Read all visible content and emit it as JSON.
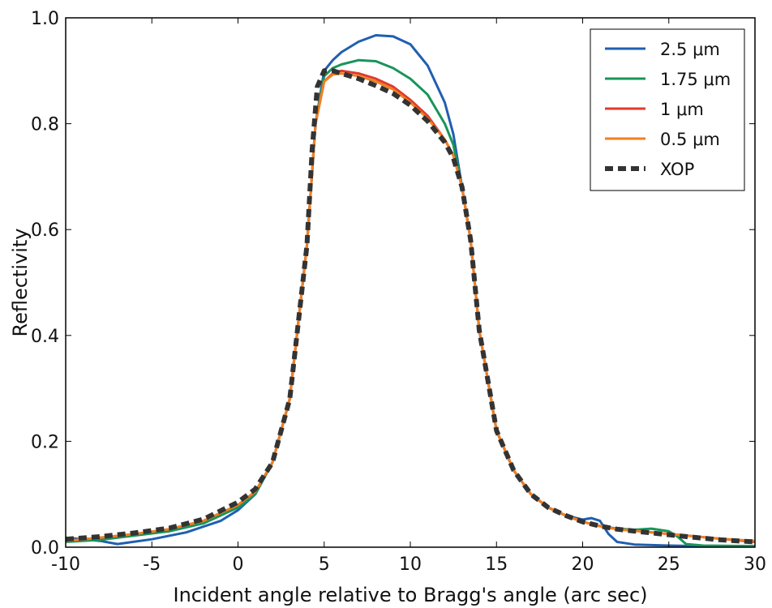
{
  "chart_data": {
    "type": "line",
    "xlabel": "Incident angle relative to Bragg's angle (arc sec)",
    "ylabel": "Reflectivity",
    "xlim": [
      -10,
      30
    ],
    "ylim": [
      0.0,
      1.0
    ],
    "xticks": [
      -10,
      -5,
      0,
      5,
      10,
      15,
      20,
      25,
      30
    ],
    "xtick_labels": [
      "-10",
      "-5",
      "0",
      "5",
      "10",
      "15",
      "20",
      "25",
      "30"
    ],
    "yticks": [
      0.0,
      0.2,
      0.4,
      0.6,
      0.8,
      1.0
    ],
    "ytick_labels": [
      "0.0",
      "0.2",
      "0.4",
      "0.6",
      "0.8",
      "1.0"
    ],
    "grid": false,
    "legend_position": "top-right",
    "series": [
      {
        "name": "2.5 μm",
        "color": "#1f5fb0",
        "style": "solid",
        "x": [
          -10,
          -8,
          -7,
          -5,
          -3,
          -1,
          0,
          1,
          2,
          3,
          4,
          4.5,
          5,
          5.5,
          6,
          7,
          8,
          9,
          10,
          11,
          12,
          12.5,
          13,
          13.5,
          14,
          15,
          16,
          17,
          18,
          19,
          20,
          20.5,
          21,
          21.5,
          22,
          23,
          25,
          27,
          30
        ],
        "y": [
          0.018,
          0.012,
          0.006,
          0.015,
          0.028,
          0.05,
          0.07,
          0.1,
          0.16,
          0.28,
          0.57,
          0.8,
          0.9,
          0.92,
          0.935,
          0.955,
          0.967,
          0.965,
          0.95,
          0.91,
          0.84,
          0.78,
          0.68,
          0.58,
          0.41,
          0.22,
          0.145,
          0.1,
          0.075,
          0.06,
          0.052,
          0.055,
          0.05,
          0.025,
          0.01,
          0.005,
          0.003,
          0.002,
          0.002
        ]
      },
      {
        "name": "1.75 μm",
        "color": "#18955a",
        "style": "solid",
        "x": [
          -10,
          -8,
          -6,
          -4,
          -2,
          0,
          1,
          2,
          3,
          4,
          4.5,
          5,
          5.5,
          6,
          7,
          8,
          9,
          10,
          11,
          12,
          12.5,
          13,
          13.5,
          14,
          15,
          16,
          17,
          18,
          19,
          20,
          21,
          22,
          23,
          24,
          25,
          25.5,
          26,
          27,
          30
        ],
        "y": [
          0.01,
          0.014,
          0.022,
          0.03,
          0.045,
          0.075,
          0.1,
          0.16,
          0.28,
          0.57,
          0.8,
          0.89,
          0.905,
          0.912,
          0.92,
          0.918,
          0.905,
          0.885,
          0.855,
          0.8,
          0.76,
          0.68,
          0.58,
          0.41,
          0.22,
          0.145,
          0.1,
          0.075,
          0.06,
          0.048,
          0.04,
          0.035,
          0.033,
          0.035,
          0.03,
          0.02,
          0.006,
          0.003,
          0.002
        ]
      },
      {
        "name": "1 μm",
        "color": "#e03a2c",
        "style": "solid",
        "x": [
          -10,
          -8,
          -6,
          -4,
          -2,
          0,
          1,
          2,
          3,
          4,
          4.5,
          5,
          5.5,
          6,
          7,
          8,
          9,
          10,
          11,
          12,
          12.5,
          13,
          13.5,
          14,
          15,
          16,
          17,
          18,
          19,
          20,
          21,
          22,
          24,
          26,
          28,
          30
        ],
        "y": [
          0.012,
          0.018,
          0.025,
          0.034,
          0.05,
          0.08,
          0.105,
          0.16,
          0.28,
          0.57,
          0.8,
          0.88,
          0.895,
          0.9,
          0.895,
          0.885,
          0.87,
          0.845,
          0.815,
          0.77,
          0.74,
          0.68,
          0.58,
          0.41,
          0.22,
          0.145,
          0.1,
          0.075,
          0.06,
          0.048,
          0.04,
          0.034,
          0.028,
          0.022,
          0.016,
          0.01
        ]
      },
      {
        "name": "0.5 μm",
        "color": "#f07f22",
        "style": "solid",
        "x": [
          -10,
          -8,
          -6,
          -4,
          -2,
          0,
          1,
          2,
          3,
          4,
          4.5,
          5,
          5.5,
          6,
          7,
          8,
          9,
          10,
          11,
          12,
          12.5,
          13,
          13.5,
          14,
          15,
          16,
          17,
          18,
          19,
          20,
          21,
          22,
          24,
          26,
          28,
          30
        ],
        "y": [
          0.012,
          0.018,
          0.025,
          0.034,
          0.05,
          0.08,
          0.105,
          0.16,
          0.28,
          0.57,
          0.8,
          0.88,
          0.893,
          0.895,
          0.89,
          0.88,
          0.865,
          0.84,
          0.81,
          0.77,
          0.74,
          0.68,
          0.58,
          0.41,
          0.22,
          0.145,
          0.1,
          0.075,
          0.06,
          0.048,
          0.04,
          0.034,
          0.028,
          0.022,
          0.016,
          0.012
        ]
      },
      {
        "name": "XOP",
        "color": "#333333",
        "style": "dashed",
        "x": [
          -10,
          -8,
          -6,
          -4,
          -2,
          0,
          1,
          2,
          3,
          4,
          4.3,
          4.6,
          5,
          5.5,
          6,
          7,
          8,
          9,
          10,
          11,
          12,
          12.5,
          13,
          13.5,
          14,
          15,
          16,
          17,
          18,
          19,
          20,
          21,
          22,
          24,
          26,
          28,
          30
        ],
        "y": [
          0.015,
          0.02,
          0.027,
          0.036,
          0.053,
          0.085,
          0.11,
          0.16,
          0.28,
          0.57,
          0.75,
          0.87,
          0.9,
          0.9,
          0.895,
          0.885,
          0.872,
          0.857,
          0.835,
          0.805,
          0.765,
          0.735,
          0.68,
          0.58,
          0.41,
          0.22,
          0.145,
          0.1,
          0.075,
          0.06,
          0.048,
          0.04,
          0.034,
          0.027,
          0.02,
          0.014,
          0.01
        ]
      }
    ]
  }
}
